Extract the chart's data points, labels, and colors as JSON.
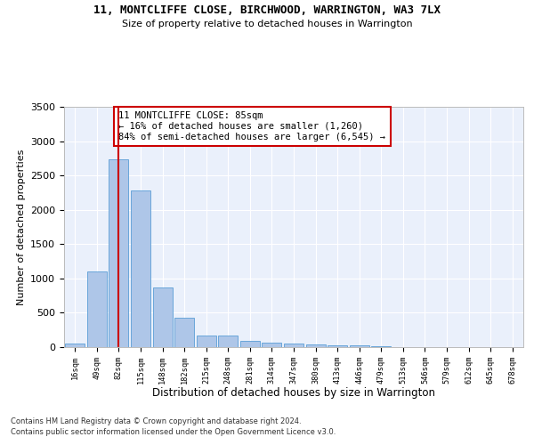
{
  "title_line1": "11, MONTCLIFFE CLOSE, BIRCHWOOD, WARRINGTON, WA3 7LX",
  "title_line2": "Size of property relative to detached houses in Warrington",
  "xlabel": "Distribution of detached houses by size in Warrington",
  "ylabel": "Number of detached properties",
  "footer_line1": "Contains HM Land Registry data © Crown copyright and database right 2024.",
  "footer_line2": "Contains public sector information licensed under the Open Government Licence v3.0.",
  "bar_labels": [
    "16sqm",
    "49sqm",
    "82sqm",
    "115sqm",
    "148sqm",
    "182sqm",
    "215sqm",
    "248sqm",
    "281sqm",
    "314sqm",
    "347sqm",
    "380sqm",
    "413sqm",
    "446sqm",
    "479sqm",
    "513sqm",
    "546sqm",
    "579sqm",
    "612sqm",
    "645sqm",
    "678sqm"
  ],
  "bar_values": [
    50,
    1100,
    2730,
    2280,
    870,
    430,
    170,
    165,
    90,
    60,
    50,
    35,
    30,
    20,
    10,
    5,
    3,
    2,
    1,
    1,
    0
  ],
  "bar_color": "#aec6e8",
  "bar_edge_color": "#5a9ed6",
  "background_color": "#eaf0fb",
  "grid_color": "#ffffff",
  "vline_x": 2,
  "vline_color": "#cc0000",
  "annotation_text": "11 MONTCLIFFE CLOSE: 85sqm\n← 16% of detached houses are smaller (1,260)\n84% of semi-detached houses are larger (6,545) →",
  "annotation_box_color": "#cc0000",
  "ylim": [
    0,
    3500
  ],
  "yticks": [
    0,
    500,
    1000,
    1500,
    2000,
    2500,
    3000,
    3500
  ]
}
